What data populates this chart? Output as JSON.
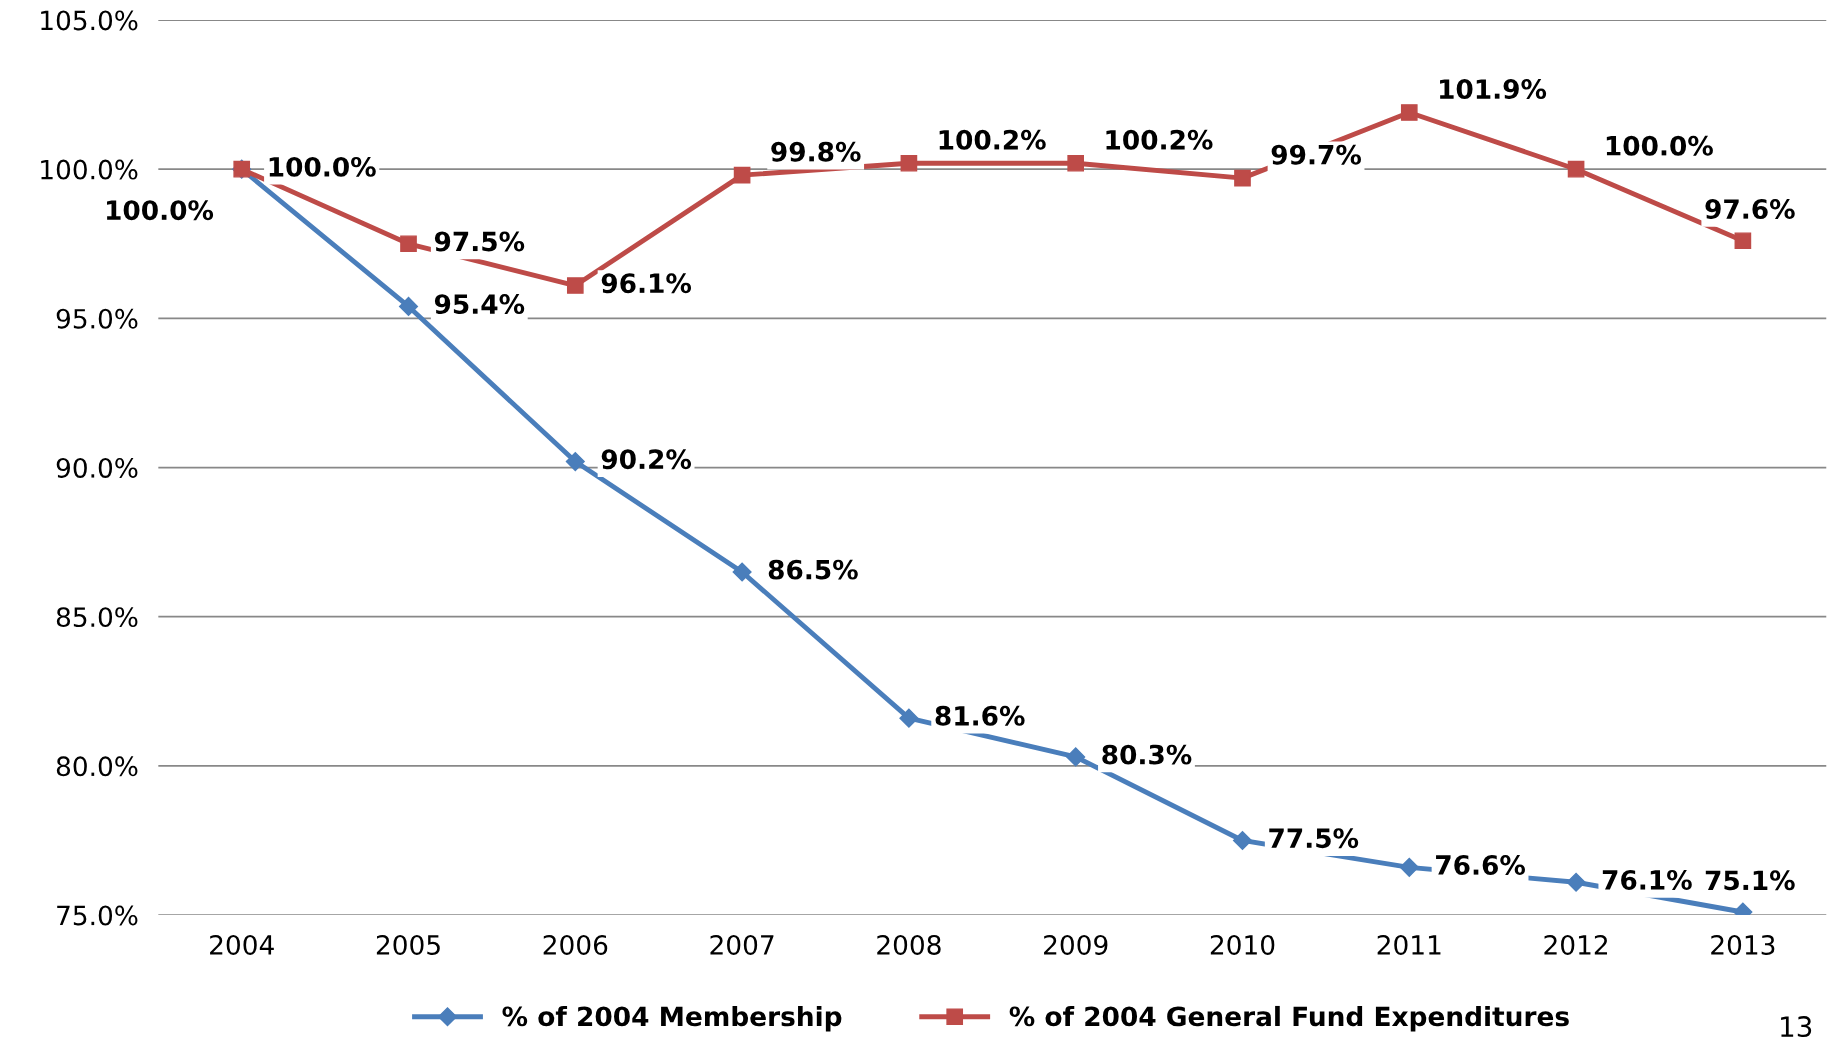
{
  "chart_data": {
    "type": "line",
    "categories": [
      "2004",
      "2005",
      "2006",
      "2007",
      "2008",
      "2009",
      "2010",
      "2011",
      "2012",
      "2013"
    ],
    "series": [
      {
        "name": "% of 2004 Membership",
        "color": "#4a7ebb",
        "marker": "diamond",
        "values": [
          100.0,
          95.4,
          90.2,
          86.5,
          81.6,
          80.3,
          77.5,
          76.6,
          76.1,
          75.1
        ],
        "value_labels": [
          "100.0%",
          "95.4%",
          "90.2%",
          "86.5%",
          "81.6%",
          "80.3%",
          "77.5%",
          "76.6%",
          "76.1%",
          "75.1%"
        ]
      },
      {
        "name": "% of 2004 General Fund Expenditures",
        "color": "#be4b48",
        "marker": "square",
        "values": [
          100.0,
          97.5,
          96.1,
          99.8,
          100.2,
          100.2,
          99.7,
          101.9,
          100.0,
          97.6
        ],
        "value_labels": [
          "100.0%",
          "97.5%",
          "96.1%",
          "99.8%",
          "100.2%",
          "100.2%",
          "99.7%",
          "101.9%",
          "100.0%",
          "97.6%"
        ]
      }
    ],
    "ylim": [
      75,
      105
    ],
    "yticks": [
      {
        "value": 75,
        "label": "75.0%"
      },
      {
        "value": 80,
        "label": "80.0%"
      },
      {
        "value": 85,
        "label": "85.0%"
      },
      {
        "value": 90,
        "label": "90.0%"
      },
      {
        "value": 95,
        "label": "95.0%"
      },
      {
        "value": 100,
        "label": "100.0%"
      },
      {
        "value": 105,
        "label": "105.0%"
      }
    ],
    "grid": "y",
    "legend": "bottom",
    "line_style": "solid",
    "annotations": [
      "13"
    ]
  }
}
